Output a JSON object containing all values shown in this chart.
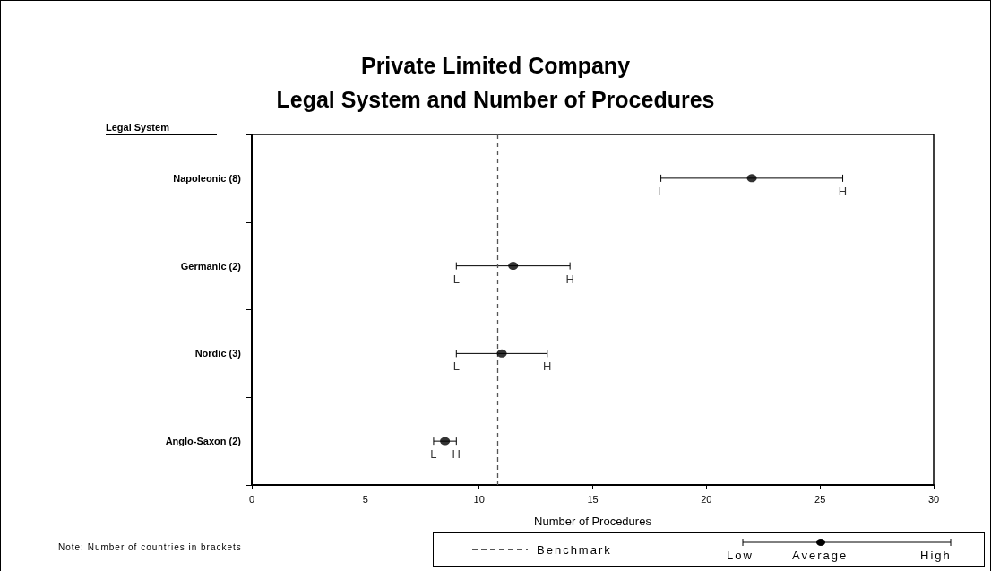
{
  "chart_data": {
    "type": "scatter",
    "title": "Private Limited Company",
    "subtitle": "Legal System and Number of Procedures",
    "ylabel": "Legal System",
    "xlabel": "Number of Procedures",
    "orientation": "horizontal",
    "categories": [
      "Napoleonic (8)",
      "Germanic (2)",
      "Nordic (3)",
      "Anglo-Saxon (2)"
    ],
    "series": [
      {
        "color": "#000000",
        "values": [
          22,
          11.5,
          11,
          8.5
        ],
        "errors": [
          [
            18,
            26
          ],
          [
            9,
            14
          ],
          [
            9,
            13
          ],
          [
            8,
            9
          ]
        ]
      }
    ],
    "marker": "circle",
    "xlim": [
      0,
      30
    ],
    "xticks": [
      0,
      5,
      10,
      15,
      20,
      25,
      30
    ],
    "grid": false,
    "legend": "bottom",
    "ref_lines": [
      {
        "axis": "x",
        "value": 10.8,
        "label": "Benchmark",
        "color": "#555555",
        "line_style": "dashed"
      }
    ],
    "annotations": [
      {
        "text": "L",
        "x": 18,
        "y": "Napoleonic (8)"
      },
      {
        "text": "H",
        "x": 26,
        "y": "Napoleonic (8)"
      },
      {
        "text": "L",
        "x": 9,
        "y": "Germanic (2)"
      },
      {
        "text": "H",
        "x": 14,
        "y": "Germanic (2)"
      },
      {
        "text": "L",
        "x": 9,
        "y": "Nordic (3)"
      },
      {
        "text": "H",
        "x": 13,
        "y": "Nordic (3)"
      },
      {
        "text": "L",
        "x": 8,
        "y": "Anglo-Saxon (2)"
      },
      {
        "text": "H",
        "x": 9,
        "y": "Anglo-Saxon (2)"
      },
      "Note: Number of countries in brackets",
      "Low",
      "Average",
      "High"
    ]
  }
}
